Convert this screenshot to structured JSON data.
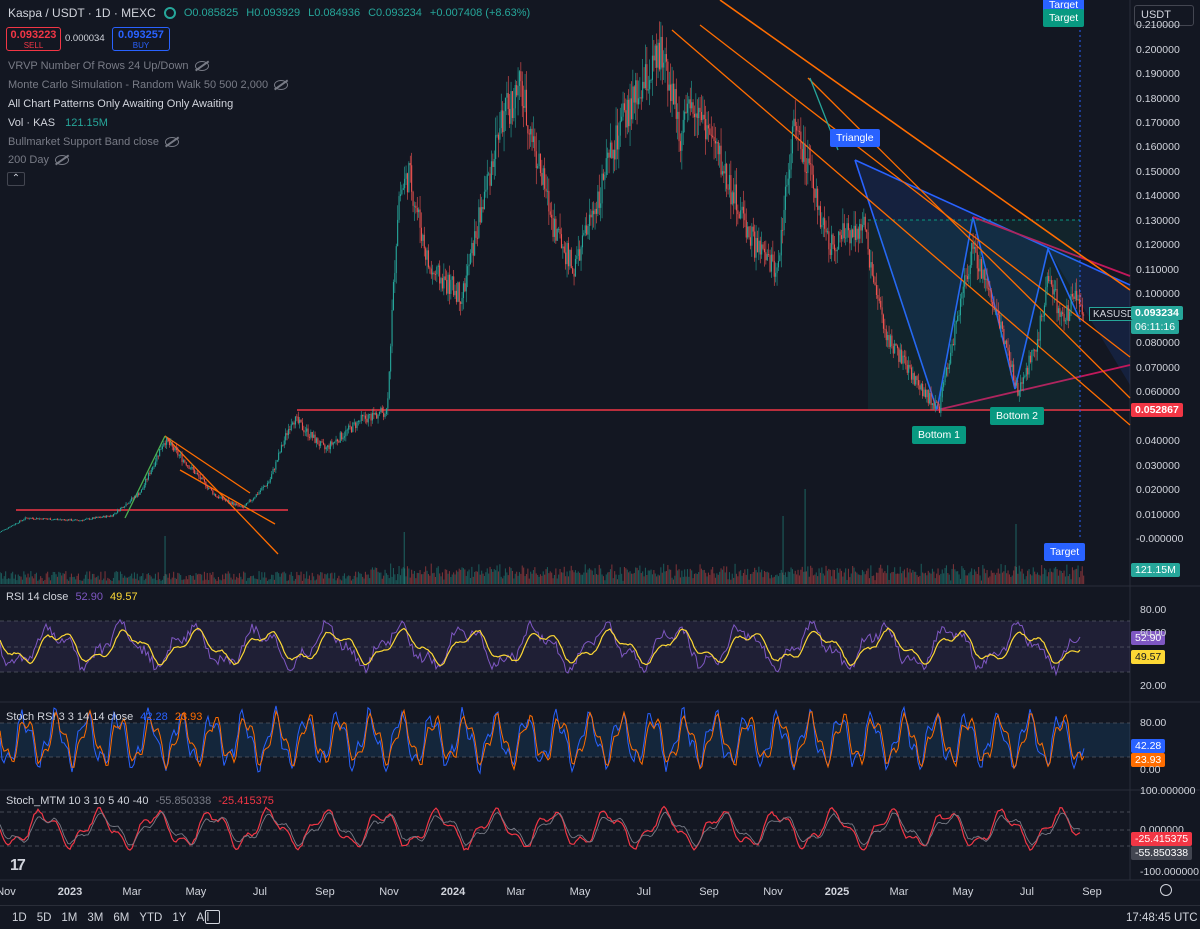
{
  "header": {
    "symbol": "Kaspa / USDT · 1D · MEXC",
    "ohlc_o": "O0.085825",
    "ohlc_h": "H0.093929",
    "ohlc_l": "L0.084936",
    "ohlc_c": "C0.093234",
    "change": "+0.007408 (+8.63%)",
    "sell_price": "0.093223",
    "sell_label": "SELL",
    "spread": "0.000034",
    "buy_price": "0.093257",
    "buy_label": "BUY",
    "currency": "USDT"
  },
  "indicators": [
    {
      "label": "VRVP Number Of Rows 24 Up/Down",
      "hidden": true
    },
    {
      "label": "Monte Carlo Simulation - Random Walk 50 500 2,000",
      "hidden": true
    },
    {
      "label": "All Chart Patterns Only Awaiting Only Awaiting",
      "hidden": false
    },
    {
      "label": "Vol · KAS",
      "value": "121.15M",
      "hidden": false
    },
    {
      "label": "Bullmarket Support Band close",
      "hidden": true
    },
    {
      "label": "200 Day",
      "hidden": true
    }
  ],
  "price_tags": {
    "symbol_tag": "KASUSDT",
    "last_price": "0.093234",
    "countdown": "06:11:16",
    "support": "0.052867",
    "volume": "121.15M"
  },
  "annotations": {
    "triangle": "Triangle",
    "bottom1": "Bottom 1",
    "bottom2": "Bottom 2",
    "target_top1": "Target",
    "target_top2": "Target",
    "target_bottom": "Target"
  },
  "rsi": {
    "label": "RSI 14 close",
    "v1": "52.90",
    "v2": "49.57",
    "ticks": [
      "80.00",
      "60.00",
      "20.00"
    ]
  },
  "stochrsi": {
    "label": "Stoch RSI 3 3 14 14 close",
    "v1": "42.28",
    "v2": "23.93",
    "ticks": [
      "80.00",
      "0.00"
    ]
  },
  "stochmtm": {
    "label": "Stoch_MTM 10 3 10 5 40 -40",
    "v1": "-55.850338",
    "v2": "-25.415375",
    "ticks": [
      "100.000000",
      "0.000000",
      "-100.000000"
    ]
  },
  "bottom_bar": {
    "timeframes": [
      "1D",
      "5D",
      "1M",
      "3M",
      "6M",
      "YTD",
      "1Y",
      "All"
    ],
    "clock": "17:48:45 UTC"
  },
  "chart_data": {
    "type": "line",
    "title": "Kaspa / USDT · 1D · MEXC",
    "y_ticks": [
      "0.210000",
      "0.200000",
      "0.190000",
      "0.180000",
      "0.170000",
      "0.160000",
      "0.150000",
      "0.140000",
      "0.130000",
      "0.120000",
      "0.110000",
      "0.100000",
      "0.080000",
      "0.070000",
      "0.060000",
      "0.040000",
      "0.030000",
      "0.020000",
      "0.010000",
      "-0.000000"
    ],
    "x_ticks": [
      "Nov",
      "2023",
      "Mar",
      "May",
      "Jul",
      "Sep",
      "Nov",
      "2024",
      "Mar",
      "May",
      "Jul",
      "Sep",
      "Nov",
      "2025",
      "Mar",
      "May",
      "Jul",
      "Sep"
    ],
    "ylim": [
      -0.01,
      0.215
    ],
    "series": [
      {
        "values": [
          [
            "2022-10-25",
            0.003
          ],
          [
            "2022-11-20",
            0.009
          ],
          [
            "2023-01-10",
            0.008
          ],
          [
            "2023-02-10",
            0.01
          ],
          [
            "2023-03-10",
            0.02
          ],
          [
            "2023-04-01",
            0.041
          ],
          [
            "2023-04-25",
            0.03
          ],
          [
            "2023-05-20",
            0.018
          ],
          [
            "2023-06-15",
            0.013
          ],
          [
            "2023-07-10",
            0.024
          ],
          [
            "2023-08-01",
            0.05
          ],
          [
            "2023-09-01",
            0.037
          ],
          [
            "2023-10-05",
            0.049
          ],
          [
            "2023-10-30",
            0.053
          ],
          [
            "2023-11-10",
            0.14
          ],
          [
            "2023-11-20",
            0.15
          ],
          [
            "2023-12-10",
            0.11
          ],
          [
            "2024-01-10",
            0.1
          ],
          [
            "2024-02-15",
            0.17
          ],
          [
            "2024-03-05",
            0.185
          ],
          [
            "2024-04-05",
            0.13
          ],
          [
            "2024-04-25",
            0.11
          ],
          [
            "2024-06-10",
            0.17
          ],
          [
            "2024-07-20",
            0.2
          ],
          [
            "2024-08-05",
            0.165
          ],
          [
            "2024-08-20",
            0.18
          ],
          [
            "2024-09-25",
            0.14
          ],
          [
            "2024-10-15",
            0.12
          ],
          [
            "2024-11-05",
            0.11
          ],
          [
            "2024-11-20",
            0.17
          ],
          [
            "2024-12-05",
            0.15
          ],
          [
            "2024-12-25",
            0.12
          ],
          [
            "2025-01-25",
            0.13
          ],
          [
            "2025-02-15",
            0.085
          ],
          [
            "2025-03-20",
            0.063
          ],
          [
            "2025-04-08",
            0.053
          ],
          [
            "2025-05-10",
            0.12
          ],
          [
            "2025-06-05",
            0.09
          ],
          [
            "2025-06-22",
            0.06
          ],
          [
            "2025-07-10",
            0.08
          ],
          [
            "2025-07-22",
            0.107
          ],
          [
            "2025-08-05",
            0.088
          ],
          [
            "2025-08-15",
            0.101
          ],
          [
            "2025-08-25",
            0.093
          ]
        ]
      }
    ],
    "support_level": 0.052867,
    "last_price": 0.093234
  }
}
